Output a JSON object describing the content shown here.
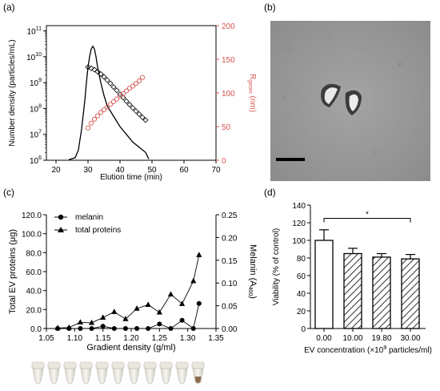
{
  "colors": {
    "red": "#d9534f",
    "black": "#000000",
    "micrograph_bg": "#9a9a9a"
  },
  "panels": {
    "a": "(a)",
    "b": "(b)",
    "c": "(c)",
    "d": "(d)"
  },
  "tube_strip": {
    "tube_count": 11,
    "description_icon": "gradient-tubes-photo"
  },
  "micrograph": {
    "icon": "tem-micrograph-image",
    "scale_bar": true
  },
  "chart_data": [
    {
      "id": "a",
      "type": "line",
      "xlabel": "Elution time (min)",
      "ylabel": "Number density (particles/mL)",
      "y2label": "R",
      "y2label_sub": "geom",
      "y2label_unit": " (nm)",
      "x_ticks": [
        "20",
        "30",
        "40",
        "50",
        "60",
        "70"
      ],
      "xlim": [
        17,
        70
      ],
      "y_log": true,
      "ylim_exp": [
        6,
        11.2
      ],
      "y_ticks_exp": [
        "6",
        "7",
        "8",
        "9",
        "10",
        "11"
      ],
      "y2lim": [
        0,
        200
      ],
      "y2_ticks": [
        "0",
        "50",
        "100",
        "150",
        "200"
      ],
      "series": [
        {
          "axis": "left",
          "style": "line",
          "color": "#000000",
          "x": [
            24,
            26,
            27,
            28,
            29,
            29.5,
            30,
            30.5,
            31,
            31.5,
            32,
            32.5,
            33,
            34,
            35,
            36,
            38,
            40,
            42,
            44,
            46,
            48,
            49
          ],
          "y_exp": [
            6.02,
            6.1,
            6.4,
            7.2,
            8.3,
            9.0,
            9.6,
            10.0,
            10.3,
            10.4,
            10.3,
            10.0,
            9.6,
            9.0,
            8.5,
            8.1,
            7.7,
            7.3,
            7.0,
            6.7,
            6.5,
            6.3,
            6.05
          ]
        },
        {
          "axis": "left",
          "style": "markers",
          "marker": "open-diamond",
          "color": "#000000",
          "x": [
            30,
            31,
            32,
            33,
            34,
            35,
            36,
            37,
            38,
            39,
            40,
            41,
            42,
            43,
            44,
            45,
            46,
            47,
            48
          ],
          "y_exp": [
            9.6,
            9.55,
            9.5,
            9.42,
            9.33,
            9.22,
            9.1,
            8.97,
            8.83,
            8.7,
            8.55,
            8.42,
            8.28,
            8.15,
            8.02,
            7.9,
            7.78,
            7.66,
            7.55
          ]
        },
        {
          "axis": "right",
          "style": "markers",
          "marker": "open-circle",
          "color": "#d9534f",
          "x": [
            30,
            31,
            32,
            33,
            34,
            35,
            36,
            37,
            38,
            39,
            40,
            41,
            42,
            43,
            44,
            45,
            46,
            47
          ],
          "y": [
            48,
            55,
            61,
            66,
            71,
            75,
            79,
            83,
            87,
            91,
            95,
            99,
            103,
            107,
            110,
            114,
            118,
            123
          ]
        }
      ]
    },
    {
      "id": "c",
      "type": "line",
      "xlabel": "Gradient density (g/ml)",
      "ylabel": "Total EV proteins (μg)",
      "y2label": "Melanin (A",
      "y2label_sub": "400",
      "y2label_unit": ")",
      "x_ticks": [
        "1.05",
        "1.10",
        "1.15",
        "1.20",
        "1.25",
        "1.30",
        "1.35"
      ],
      "xlim": [
        1.05,
        1.35
      ],
      "ylim": [
        0,
        120
      ],
      "y_ticks": [
        "0.0",
        "20.0",
        "40.0",
        "60.0",
        "80.0",
        "100.0",
        "120.0"
      ],
      "y2lim": [
        0,
        0.25
      ],
      "y2_ticks": [
        "0.00",
        "0.05",
        "0.10",
        "0.15",
        "0.20",
        "0.25"
      ],
      "legend_position": "top-left",
      "series": [
        {
          "name": "melanin",
          "axis": "right",
          "marker": "filled-circle",
          "line": "solid",
          "x": [
            1.07,
            1.09,
            1.11,
            1.13,
            1.15,
            1.17,
            1.19,
            1.21,
            1.23,
            1.25,
            1.27,
            1.29,
            1.31,
            1.32
          ],
          "y": [
            0.0,
            0.0,
            0.0,
            0.0,
            0.005,
            0.0,
            0.0,
            0.0,
            0.0,
            0.01,
            0.0,
            0.018,
            0.0,
            0.055
          ]
        },
        {
          "name": "total proteins",
          "axis": "left",
          "marker": "filled-triangle",
          "line": "solid",
          "x": [
            1.07,
            1.09,
            1.11,
            1.13,
            1.15,
            1.17,
            1.19,
            1.21,
            1.23,
            1.25,
            1.27,
            1.29,
            1.31,
            1.32
          ],
          "y": [
            0.5,
            1.0,
            6.5,
            6.0,
            11.5,
            17.5,
            10.0,
            21.0,
            25.0,
            17.0,
            36.0,
            26.0,
            50.0,
            77.5
          ]
        }
      ]
    },
    {
      "id": "d",
      "type": "bar",
      "xlabel": "EV concentration (×10",
      "xlabel_sup": "9",
      "xlabel_unit": " particles/ml)",
      "ylabel": "Viability (% of control)",
      "categories": [
        "0.00",
        "10.00",
        "19.80",
        "30.00"
      ],
      "values": [
        100,
        85,
        81,
        79
      ],
      "errors": [
        12,
        6,
        4,
        5
      ],
      "patterns": [
        "open",
        "hatched",
        "hatched",
        "hatched"
      ],
      "ylim": [
        0,
        140
      ],
      "y_ticks": [
        "0",
        "20",
        "40",
        "60",
        "80",
        "100",
        "120",
        "140"
      ],
      "significance": {
        "from": 0,
        "to": 3,
        "label": "*"
      }
    }
  ]
}
